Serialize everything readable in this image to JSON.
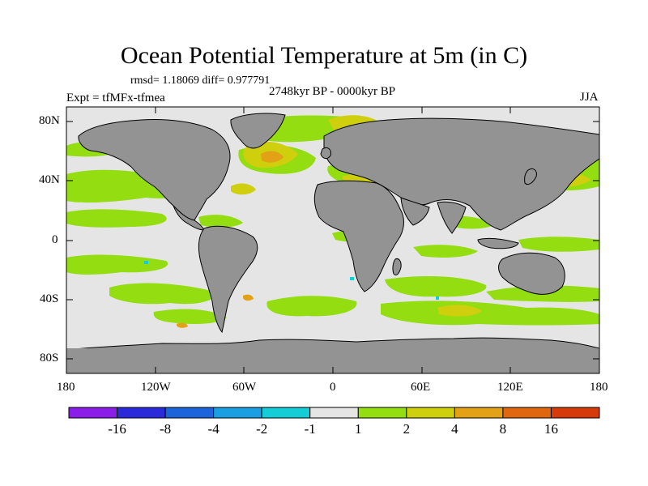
{
  "title": "Ocean Potential Temperature at 5m (in C)",
  "stats": "rmsd= 1.18069 diff= 0.977791",
  "experiment": "Expt = tfMFx-tfmea",
  "period": "2748kyr BP - 0000kyr BP",
  "season": "JJA",
  "map": {
    "lat_labels": [
      "80N",
      "40N",
      "0",
      "40S",
      "80S"
    ],
    "lon_labels": [
      "180",
      "120W",
      "60W",
      "0",
      "60E",
      "120E",
      "180"
    ]
  },
  "colorbar": {
    "labels": [
      "-16",
      "-8",
      "-4",
      "-2",
      "-1",
      "1",
      "2",
      "4",
      "8",
      "16"
    ],
    "colors": [
      "#8b1de8",
      "#2a2adb",
      "#1b64dc",
      "#1aa0e2",
      "#14cdd6",
      "#e5e5e5",
      "#93dd10",
      "#cfcf0e",
      "#e3a116",
      "#e0660f",
      "#d63a0a"
    ]
  },
  "palette": {
    "land": "#939393",
    "ocean_neutral": "#e5e5e5",
    "warm1": "#93dd10",
    "warm2": "#cfcf0e",
    "cool": "#14cdd6"
  }
}
